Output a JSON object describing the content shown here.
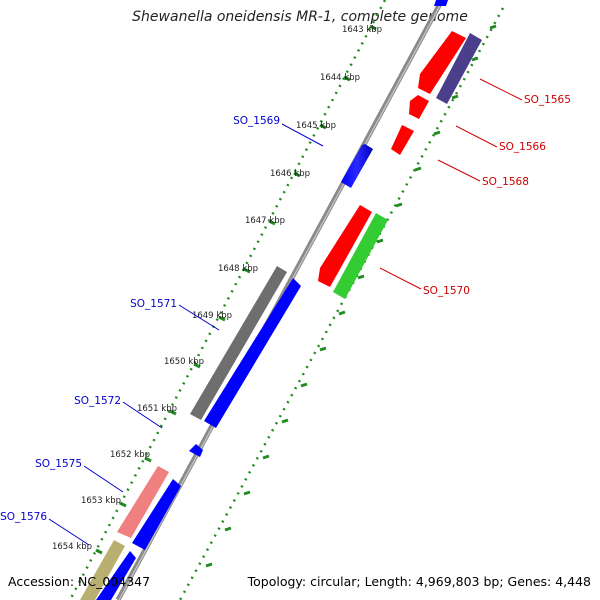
{
  "title": "Shewanella oneidensis MR-1, complete genome",
  "accession": "Accession: NC_004347",
  "topology": "Topology: circular; Length: 4,969,803 bp; Genes: 4,448",
  "colors": {
    "backbone": "#8a8a8a",
    "tick": "#228b22",
    "forward_label": "#0000cc",
    "reverse_label": "#cc0000"
  },
  "ticks": [
    {
      "label": "1643 kbp",
      "position": 1643
    },
    {
      "label": "1644 kbp",
      "position": 1644
    },
    {
      "label": "1645 kbp",
      "position": 1645
    },
    {
      "label": "1646 kbp",
      "position": 1646
    },
    {
      "label": "1647 kbp",
      "position": 1647
    },
    {
      "label": "1648 kbp",
      "position": 1648
    },
    {
      "label": "1649 kbp",
      "position": 1649
    },
    {
      "label": "1650 kbp",
      "position": 1650
    },
    {
      "label": "1651 kbp",
      "position": 1651
    },
    {
      "label": "1652 kbp",
      "position": 1652
    },
    {
      "label": "1653 kbp",
      "position": 1653
    },
    {
      "label": "1654 kbp",
      "position": 1654
    }
  ],
  "gene_labels": [
    {
      "text": "SO_1565",
      "side": "reverse"
    },
    {
      "text": "SO_1566",
      "side": "reverse"
    },
    {
      "text": "SO_1568",
      "side": "reverse"
    },
    {
      "text": "SO_1570",
      "side": "reverse"
    },
    {
      "text": "SO_1569",
      "side": "forward"
    },
    {
      "text": "SO_1571",
      "side": "forward"
    },
    {
      "text": "SO_1572",
      "side": "forward"
    },
    {
      "text": "SO_1575",
      "side": "forward"
    },
    {
      "text": "SO_1576",
      "side": "forward"
    }
  ]
}
